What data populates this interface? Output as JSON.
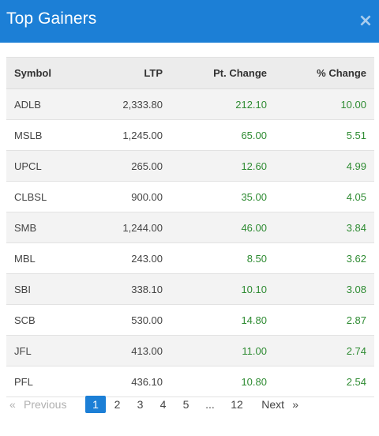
{
  "modal": {
    "title": "Top Gainers",
    "close_symbol": "×"
  },
  "table": {
    "headers": {
      "symbol": "Symbol",
      "ltp": "LTP",
      "pt_change": "Pt. Change",
      "pct_change": "% Change"
    },
    "rows": [
      {
        "symbol": "ADLB",
        "ltp": "2,333.80",
        "pt_change": "212.10",
        "pct_change": "10.00"
      },
      {
        "symbol": "MSLB",
        "ltp": "1,245.00",
        "pt_change": "65.00",
        "pct_change": "5.51"
      },
      {
        "symbol": "UPCL",
        "ltp": "265.00",
        "pt_change": "12.60",
        "pct_change": "4.99"
      },
      {
        "symbol": "CLBSL",
        "ltp": "900.00",
        "pt_change": "35.00",
        "pct_change": "4.05"
      },
      {
        "symbol": "SMB",
        "ltp": "1,244.00",
        "pt_change": "46.00",
        "pct_change": "3.84"
      },
      {
        "symbol": "MBL",
        "ltp": "243.00",
        "pt_change": "8.50",
        "pct_change": "3.62"
      },
      {
        "symbol": "SBI",
        "ltp": "338.10",
        "pt_change": "10.10",
        "pct_change": "3.08"
      },
      {
        "symbol": "SCB",
        "ltp": "530.00",
        "pt_change": "14.80",
        "pct_change": "2.87"
      },
      {
        "symbol": "JFL",
        "ltp": "413.00",
        "pt_change": "11.00",
        "pt_change_note": "",
        "pct_change": "2.74"
      },
      {
        "symbol": "PFL",
        "ltp": "436.10",
        "pt_change": "10.80",
        "pct_change": "2.54"
      }
    ]
  },
  "pagination": {
    "first_symbol": "«",
    "previous_label": "Previous",
    "pages": [
      "1",
      "2",
      "3",
      "4",
      "5"
    ],
    "ellipsis": "...",
    "last_page": "12",
    "next_label": "Next",
    "last_symbol": "»",
    "current_page": "1"
  },
  "colors": {
    "header_bg": "#1c7fd6",
    "positive": "#2e8b32",
    "current_page_bg": "#1c7fd6"
  }
}
